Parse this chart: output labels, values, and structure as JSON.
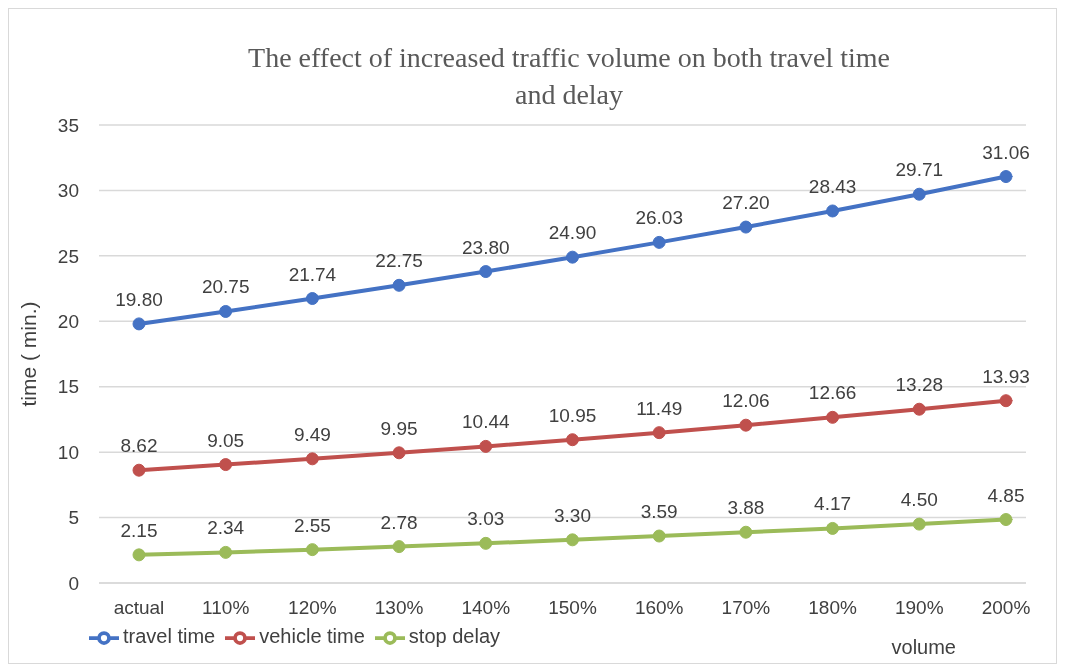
{
  "chart_data": {
    "type": "line",
    "title": "The effect of increased traffic volume on both travel time and delay",
    "xlabel": "volume",
    "ylabel": "time ( min.)",
    "categories": [
      "actual",
      "110%",
      "120%",
      "130%",
      "140%",
      "150%",
      "160%",
      "170%",
      "180%",
      "190%",
      "200%"
    ],
    "series": [
      {
        "name": "travel time",
        "color": "#4472c4",
        "values": [
          19.8,
          20.75,
          21.74,
          22.75,
          23.8,
          24.9,
          26.03,
          27.2,
          28.43,
          29.71,
          31.06
        ],
        "value_labels": [
          "19.80",
          "20.75",
          "21.74",
          "22.75",
          "23.80",
          "24.90",
          "26.03",
          "27.20",
          "28.43",
          "29.71",
          "31.06"
        ]
      },
      {
        "name": "vehicle time",
        "color": "#c0504d",
        "values": [
          8.62,
          9.05,
          9.49,
          9.95,
          10.44,
          10.95,
          11.49,
          12.06,
          12.66,
          13.28,
          13.93
        ],
        "value_labels": [
          "8.62",
          "9.05",
          "9.49",
          "9.95",
          "10.44",
          "10.95",
          "11.49",
          "12.06",
          "12.66",
          "13.28",
          "13.93"
        ]
      },
      {
        "name": "stop delay",
        "color": "#9bbb59",
        "values": [
          2.15,
          2.34,
          2.55,
          2.78,
          3.03,
          3.3,
          3.59,
          3.88,
          4.17,
          4.5,
          4.85
        ],
        "value_labels": [
          "2.15",
          "2.34",
          "2.55",
          "2.78",
          "3.03",
          "3.30",
          "3.59",
          "3.88",
          "4.17",
          "4.50",
          "4.85"
        ]
      }
    ],
    "ylim": [
      0,
      35
    ],
    "yticks": [
      0,
      5,
      10,
      15,
      20,
      25,
      30,
      35
    ],
    "grid": "y",
    "legend": "bottom left",
    "marker": "circle",
    "line_style": "solid"
  }
}
